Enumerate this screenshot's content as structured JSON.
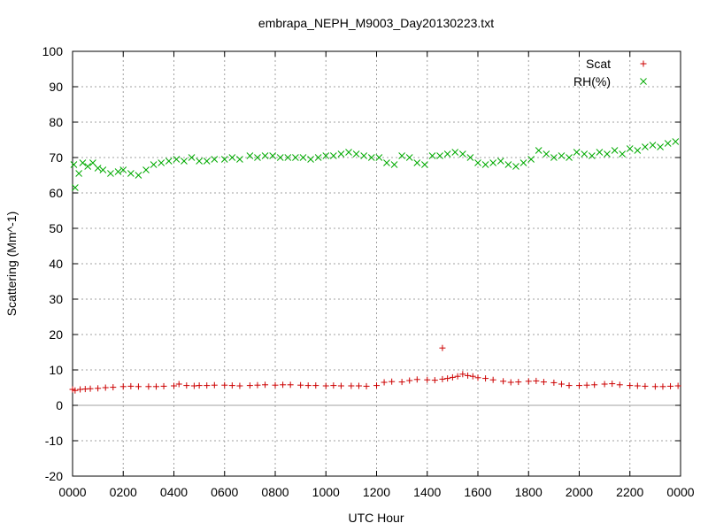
{
  "chart_data": {
    "type": "scatter",
    "title": "embrapa_NEPH_M9003_Day20130223.txt",
    "xlabel": "UTC Hour",
    "ylabel": "Scattering (Mm^-1)",
    "xlim": [
      0,
      24
    ],
    "ylim": [
      -20,
      100
    ],
    "grid": true,
    "legend_position": "top-right",
    "x_ticks": [
      0,
      2,
      4,
      6,
      8,
      10,
      12,
      14,
      16,
      18,
      20,
      22,
      24
    ],
    "x_tick_labels": [
      "0000",
      "0200",
      "0400",
      "0600",
      "0800",
      "1000",
      "1200",
      "1400",
      "1600",
      "1800",
      "2000",
      "2200",
      "0000"
    ],
    "y_ticks": [
      -20,
      -10,
      0,
      10,
      20,
      30,
      40,
      50,
      60,
      70,
      80,
      90,
      100
    ],
    "y_tick_labels": [
      "-20",
      "-10",
      "0",
      "10",
      "20",
      "30",
      "40",
      "50",
      "60",
      "70",
      "80",
      "90",
      "100"
    ],
    "series": [
      {
        "name": "Scat",
        "marker": "plus",
        "color": "#cc0000",
        "x": [
          0.0,
          0.1,
          0.3,
          0.5,
          0.7,
          1.0,
          1.3,
          1.6,
          2.0,
          2.3,
          2.6,
          3.0,
          3.3,
          3.6,
          4.0,
          4.2,
          4.5,
          4.8,
          5.0,
          5.3,
          5.6,
          6.0,
          6.3,
          6.6,
          7.0,
          7.3,
          7.6,
          8.0,
          8.3,
          8.6,
          9.0,
          9.3,
          9.6,
          10.0,
          10.3,
          10.6,
          11.0,
          11.3,
          11.6,
          12.0,
          12.3,
          12.6,
          13.0,
          13.3,
          13.6,
          14.0,
          14.3,
          14.6,
          14.8,
          15.0,
          15.2,
          15.4,
          15.6,
          15.8,
          16.0,
          16.3,
          16.6,
          17.0,
          17.3,
          17.6,
          18.0,
          18.3,
          18.6,
          19.0,
          19.3,
          19.6,
          20.0,
          20.3,
          20.6,
          21.0,
          21.3,
          21.6,
          22.0,
          22.3,
          22.6,
          23.0,
          23.3,
          23.6,
          23.9,
          14.6
        ],
        "y": [
          4.5,
          4.2,
          4.5,
          4.6,
          4.7,
          4.8,
          5.0,
          5.1,
          5.3,
          5.4,
          5.3,
          5.3,
          5.3,
          5.4,
          5.5,
          6.0,
          5.6,
          5.5,
          5.6,
          5.6,
          5.7,
          5.7,
          5.6,
          5.5,
          5.6,
          5.7,
          5.8,
          5.7,
          5.8,
          5.8,
          5.7,
          5.6,
          5.6,
          5.5,
          5.6,
          5.5,
          5.5,
          5.5,
          5.4,
          5.6,
          6.5,
          6.7,
          6.6,
          7.0,
          7.3,
          7.2,
          7.1,
          7.4,
          7.6,
          7.9,
          8.2,
          8.8,
          8.4,
          8.2,
          7.8,
          7.6,
          7.2,
          6.8,
          6.5,
          6.6,
          6.8,
          6.9,
          6.6,
          6.4,
          6.0,
          5.6,
          5.6,
          5.7,
          5.8,
          6.0,
          6.1,
          5.8,
          5.6,
          5.5,
          5.4,
          5.3,
          5.3,
          5.4,
          5.5,
          16.2
        ]
      },
      {
        "name": "RH(%)",
        "marker": "x",
        "color": "#00aa00",
        "x": [
          0.1,
          0.25,
          0.4,
          0.6,
          0.8,
          1.0,
          1.2,
          1.5,
          1.8,
          2.0,
          2.3,
          2.6,
          2.9,
          3.2,
          3.5,
          3.8,
          4.1,
          4.4,
          4.7,
          5.0,
          5.3,
          5.6,
          6.0,
          6.3,
          6.6,
          7.0,
          7.3,
          7.6,
          7.9,
          8.2,
          8.5,
          8.8,
          9.1,
          9.4,
          9.7,
          10.0,
          10.3,
          10.6,
          10.9,
          11.2,
          11.5,
          11.8,
          12.1,
          12.4,
          12.7,
          13.0,
          13.3,
          13.6,
          13.9,
          14.2,
          14.5,
          14.8,
          15.1,
          15.4,
          15.7,
          16.0,
          16.3,
          16.6,
          16.9,
          17.2,
          17.5,
          17.8,
          18.1,
          18.4,
          18.7,
          19.0,
          19.3,
          19.6,
          19.9,
          20.2,
          20.5,
          20.8,
          21.1,
          21.4,
          21.7,
          22.0,
          22.3,
          22.6,
          22.9,
          23.2,
          23.5,
          23.8,
          0.05
        ],
        "y": [
          61.5,
          65.5,
          68.5,
          67.5,
          68.5,
          67.0,
          66.5,
          65.5,
          66.0,
          66.5,
          65.5,
          65.0,
          66.5,
          68.0,
          68.5,
          69.0,
          69.5,
          69.0,
          70.0,
          69.0,
          69.0,
          69.5,
          69.5,
          70.0,
          69.5,
          70.5,
          70.0,
          70.5,
          70.5,
          70.0,
          70.0,
          70.0,
          70.0,
          69.5,
          70.0,
          70.5,
          70.5,
          71.0,
          71.5,
          71.0,
          70.5,
          70.0,
          70.0,
          68.5,
          68.0,
          70.5,
          70.0,
          68.5,
          68.0,
          70.5,
          70.5,
          71.0,
          71.5,
          71.0,
          70.0,
          68.5,
          68.0,
          68.5,
          69.0,
          68.0,
          67.5,
          68.5,
          69.5,
          72.0,
          71.0,
          70.0,
          70.5,
          70.0,
          71.5,
          71.0,
          70.5,
          71.5,
          71.0,
          72.0,
          71.0,
          72.5,
          72.0,
          73.0,
          73.5,
          73.0,
          74.0,
          74.5,
          68.0
        ]
      }
    ]
  }
}
